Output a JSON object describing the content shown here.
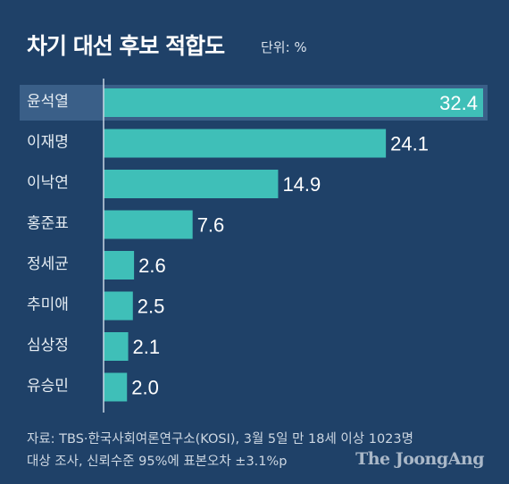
{
  "header": {
    "title": "차기 대선 후보 적합도",
    "unit": "단위: %"
  },
  "chart_data": {
    "type": "bar",
    "orientation": "horizontal",
    "categories": [
      "윤석열",
      "이재명",
      "이낙연",
      "홍준표",
      "정세균",
      "추미애",
      "심상정",
      "유승민"
    ],
    "values": [
      32.4,
      24.1,
      14.9,
      7.6,
      2.6,
      2.5,
      2.1,
      2.0
    ],
    "value_labels": [
      "32.4",
      "24.1",
      "14.9",
      "7.6",
      "2.6",
      "2.5",
      "2.1",
      "2.0"
    ],
    "title": "차기 대선 후보 적합도",
    "xlabel": "",
    "ylabel": "",
    "bar_color": "#3fbfb8",
    "highlight_row_color": "#3a5f88",
    "grid": false
  },
  "footer": {
    "source_line1": "자료: TBS·한국사회여론연구소(KOSI), 3월 5일 만 18세 이상 1023명",
    "source_line2": "대상 조사, 신뢰수준 95%에 표본오차 ±3.1%p",
    "brand": "The JoongAng"
  }
}
